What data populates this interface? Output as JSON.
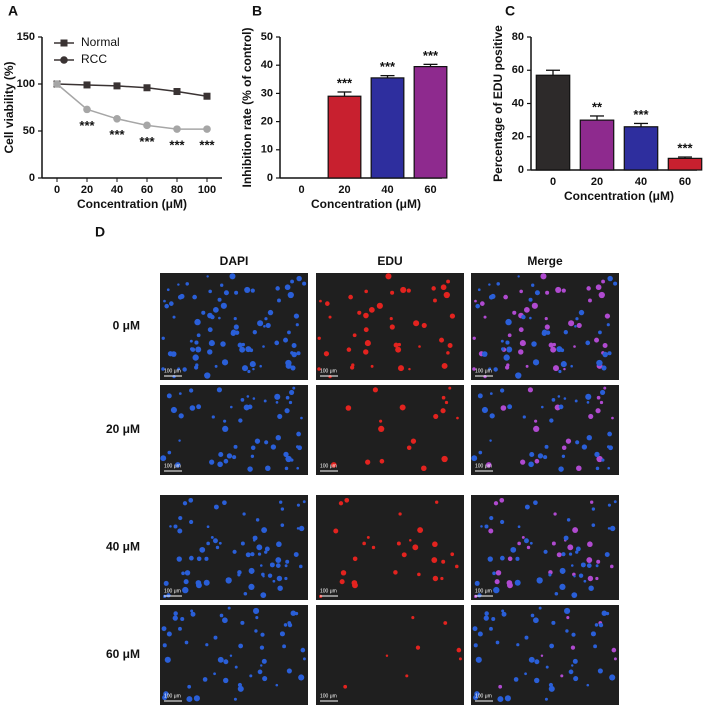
{
  "chart_data": [
    {
      "type": "line",
      "panel": "A",
      "categories": [
        "0",
        "20",
        "40",
        "60",
        "80",
        "100"
      ],
      "series": [
        {
          "name": "Normal",
          "color": "#3a3333",
          "marker": "square",
          "values": [
            100,
            99,
            98,
            96,
            92,
            87
          ]
        },
        {
          "name": "RCC",
          "color": "#a6a6a6",
          "legend_color": "#3a3333",
          "marker": "circle",
          "values": [
            100,
            73,
            63,
            56,
            52,
            52
          ],
          "significance": [
            null,
            "***",
            "***",
            "***",
            "***",
            "***"
          ]
        }
      ],
      "ylim": [
        0,
        150
      ],
      "yticks": [
        0,
        50,
        100,
        150
      ],
      "ylabel": "Cell viability (%)",
      "xlabel": "Concentration (μM)",
      "legend": "top-left"
    },
    {
      "type": "bar",
      "panel": "B",
      "categories": [
        "0",
        "20",
        "40",
        "60"
      ],
      "values": [
        null,
        29,
        35.5,
        39.5
      ],
      "errors": [
        null,
        1.5,
        0.8,
        0.8
      ],
      "colors": [
        null,
        "#c8202f",
        "#2e2e9e",
        "#8e2a8e"
      ],
      "significance": [
        null,
        "***",
        "***",
        "***"
      ],
      "ylim": [
        0,
        50
      ],
      "yticks": [
        0,
        10,
        20,
        30,
        40,
        50
      ],
      "ylabel": "Inhibition rate (% of control)",
      "xlabel": "Concentration (μM)"
    },
    {
      "type": "bar",
      "panel": "C",
      "categories": [
        "0",
        "20",
        "40",
        "60"
      ],
      "values": [
        57,
        30,
        26,
        7
      ],
      "errors": [
        3,
        2.5,
        2,
        0.8
      ],
      "colors": [
        "#2d2a2a",
        "#8e2a8e",
        "#2e2e9e",
        "#c8202f"
      ],
      "significance": [
        null,
        "**",
        "***",
        "***"
      ],
      "ylim": [
        0,
        80
      ],
      "yticks": [
        0,
        20,
        40,
        60,
        80
      ],
      "ylabel": "Percentage of EDU positive",
      "xlabel": "Concentration (μM)"
    }
  ],
  "panel_d": {
    "label": "D",
    "columns": [
      "DAPI",
      "EDU",
      "Merge"
    ],
    "rows": [
      "0 μM",
      "20 μM",
      "40 μM",
      "60 μM"
    ],
    "scale_bar": "100 μm"
  }
}
